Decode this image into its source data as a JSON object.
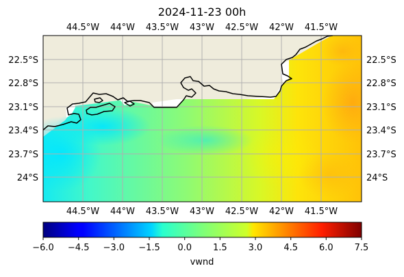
{
  "title": "2024-11-23 00h",
  "map": {
    "lon_ticks": [
      "44.5°W",
      "44°W",
      "43.5°W",
      "43°W",
      "42.5°W",
      "42°W",
      "41.5°W"
    ],
    "lat_ticks": [
      "22.5°S",
      "22.8°S",
      "23.1°S",
      "23.4°S",
      "23.7°S",
      "24°S"
    ],
    "land_color": "#efecdc",
    "coast_color": "#000000",
    "grid_color": "#b0b0b0",
    "grid": true
  },
  "colorbar": {
    "label": "vwnd",
    "ticks": [
      "−6.0",
      "−4.5",
      "−3.0",
      "−1.5",
      "0.0",
      "1.5",
      "3.0",
      "4.5",
      "6.0",
      "7.5"
    ],
    "range": [
      -6.0,
      7.5
    ],
    "colormap": "jet"
  }
}
